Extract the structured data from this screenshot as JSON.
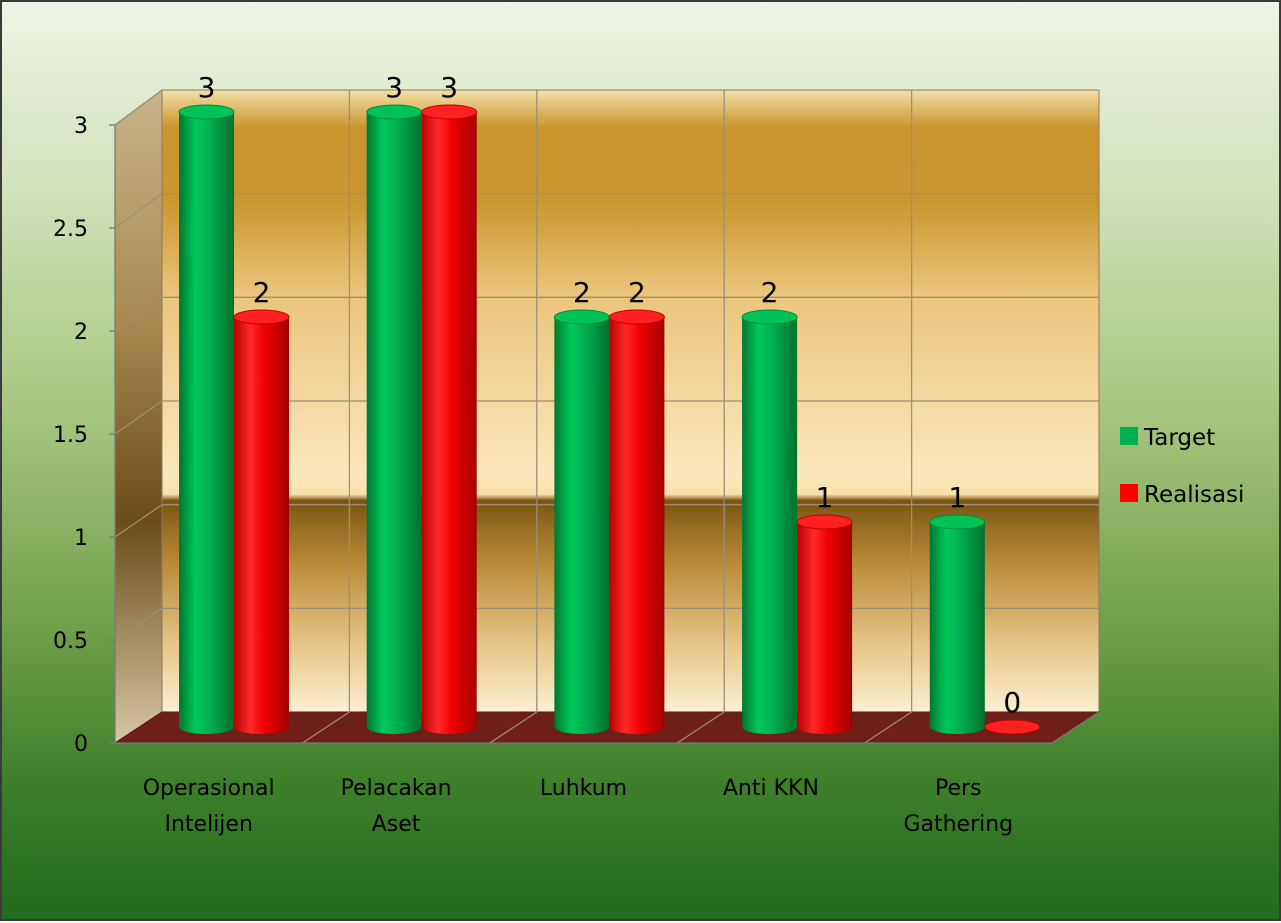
{
  "chart_data": {
    "type": "bar",
    "categories": [
      [
        "Operasional",
        "Intelijen"
      ],
      [
        "Pelacakan",
        "Aset"
      ],
      [
        "Luhkum"
      ],
      [
        "Anti KKN"
      ],
      [
        "Pers",
        "Gathering"
      ]
    ],
    "series": [
      {
        "name": "Target",
        "color": "#00b050",
        "values": [
          3,
          3,
          2,
          2,
          1
        ]
      },
      {
        "name": "Realisasi",
        "color": "#ff0000",
        "values": [
          2,
          3,
          2,
          1,
          0
        ]
      }
    ],
    "data_labels": [
      [
        "3",
        "3",
        "2",
        "2",
        "1"
      ],
      [
        "2",
        "3",
        "2",
        "1",
        "0"
      ]
    ],
    "y_ticks": [
      "0",
      "0.5",
      "1",
      "1.5",
      "2",
      "2.5",
      "3"
    ],
    "ylim": [
      0,
      3
    ],
    "grid": true,
    "legend_position": "right",
    "style": "3d-cylinder"
  }
}
